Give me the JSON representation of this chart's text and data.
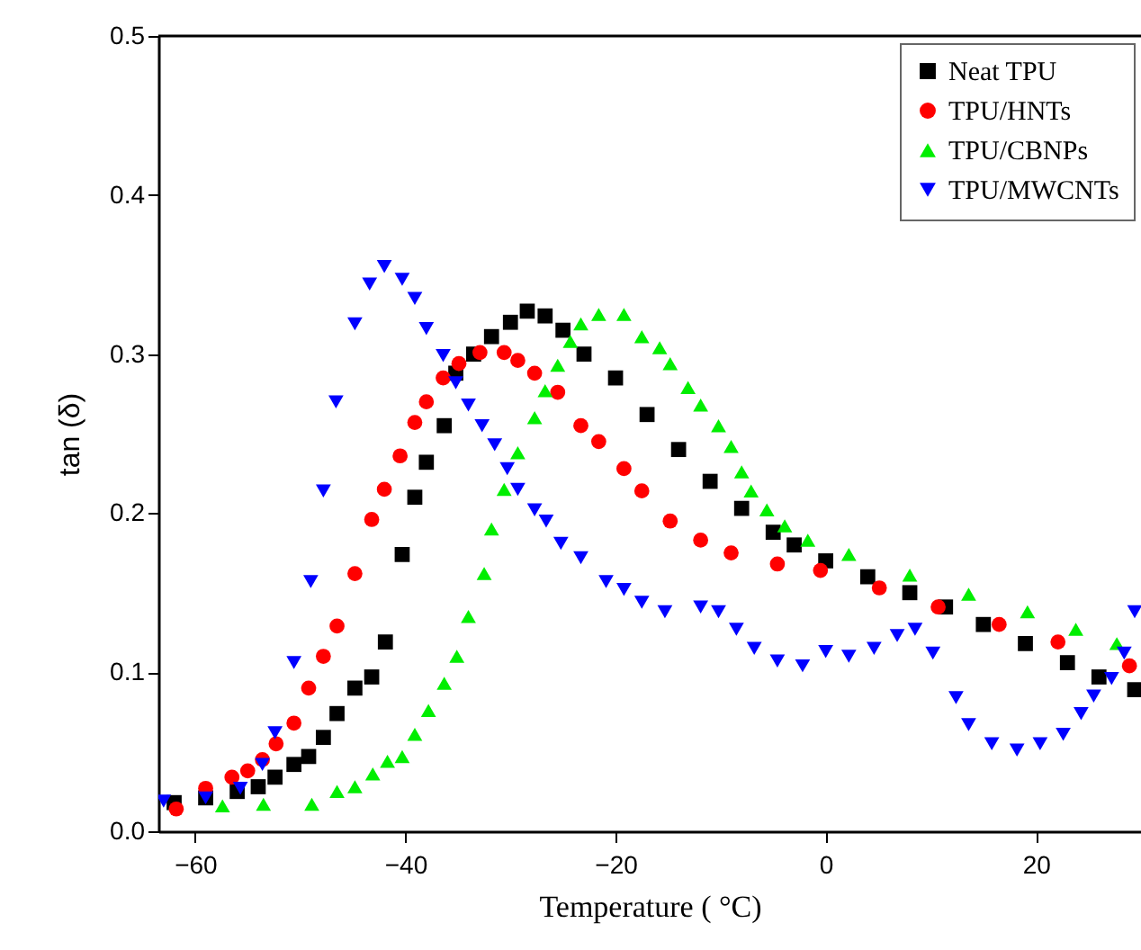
{
  "chart_data": {
    "type": "scatter",
    "xlabel": "Temperature ( °C)",
    "ylabel": "tan (δ)",
    "xlim": [
      -63.5,
      30
    ],
    "xticks": [
      -60,
      -40,
      -20,
      0,
      20
    ],
    "ylim": [
      0,
      0.5
    ],
    "yticks": [
      {
        "value": 0,
        "label": "0.0"
      },
      0.1,
      0.2,
      0.3,
      0.4,
      0.5
    ],
    "grid": false,
    "legend": "top right",
    "series": [
      {
        "name": "Neat TPU",
        "color": "#000000",
        "marker": "square",
        "x": [
          -62,
          -59,
          -56,
          -54,
          -52.4,
          -50.6,
          -49.2,
          -47.8,
          -46.5,
          -44.8,
          -43.2,
          -41.9,
          -40.3,
          -39.1,
          -38,
          -36.3,
          -35.2,
          -33.5,
          -31.8,
          -30,
          -28.4,
          -26.7,
          -25,
          -23,
          -20,
          -17,
          -14,
          -11,
          -8,
          -5,
          -3,
          0,
          4,
          8,
          11.4,
          15,
          19,
          23,
          26,
          29.4
        ],
        "values": [
          0.018,
          0.021,
          0.025,
          0.028,
          0.034,
          0.042,
          0.047,
          0.059,
          0.074,
          0.09,
          0.097,
          0.119,
          0.174,
          0.21,
          0.232,
          0.255,
          0.288,
          0.3,
          0.311,
          0.32,
          0.327,
          0.324,
          0.315,
          0.3,
          0.285,
          0.262,
          0.24,
          0.22,
          0.203,
          0.188,
          0.18,
          0.17,
          0.16,
          0.15,
          0.141,
          0.13,
          0.118,
          0.106,
          0.097,
          0.089
        ]
      },
      {
        "name": "TPU/HNTs",
        "color": "#ff0000",
        "marker": "circle",
        "x": [
          -61.8,
          -59,
          -56.5,
          -55,
          -53.6,
          -52.3,
          -50.6,
          -49.2,
          -47.8,
          -46.5,
          -44.8,
          -43.2,
          -42,
          -40.5,
          -39.1,
          -38,
          -36.4,
          -34.9,
          -32.9,
          -30.6,
          -29.3,
          -27.7,
          -25.5,
          -23.3,
          -21.6,
          -19.2,
          -17.5,
          -14.8,
          -11.9,
          -9,
          -4.6,
          -0.5,
          5.1,
          10.7,
          16.5,
          22.1,
          28.9
        ],
        "values": [
          0.014,
          0.027,
          0.034,
          0.038,
          0.045,
          0.055,
          0.068,
          0.09,
          0.11,
          0.129,
          0.162,
          0.196,
          0.215,
          0.236,
          0.257,
          0.27,
          0.285,
          0.294,
          0.301,
          0.301,
          0.296,
          0.288,
          0.276,
          0.255,
          0.245,
          0.228,
          0.214,
          0.195,
          0.183,
          0.175,
          0.168,
          0.164,
          0.153,
          0.141,
          0.13,
          0.119,
          0.104
        ]
      },
      {
        "name": "TPU/CBNPs",
        "color": "#00ee00",
        "marker": "triangle-up",
        "x": [
          -57.4,
          -53.5,
          -48.9,
          -46.5,
          -44.8,
          -43.1,
          -41.7,
          -40.3,
          -39.1,
          -37.8,
          -36.3,
          -35.1,
          -34,
          -32.5,
          -31.8,
          -30.6,
          -29.3,
          -27.7,
          -26.7,
          -25.5,
          -24.3,
          -23.3,
          -21.6,
          -19.2,
          -17.5,
          -15.8,
          -14.8,
          -13.1,
          -11.9,
          -10.2,
          -9,
          -8,
          -7.1,
          -5.6,
          -3.9,
          -1.7,
          2.2,
          8,
          13.6,
          19.2,
          23.8,
          27.7
        ],
        "values": [
          0.016,
          0.017,
          0.017,
          0.025,
          0.028,
          0.036,
          0.044,
          0.047,
          0.061,
          0.076,
          0.093,
          0.11,
          0.135,
          0.162,
          0.19,
          0.215,
          0.238,
          0.26,
          0.277,
          0.293,
          0.308,
          0.319,
          0.325,
          0.325,
          0.311,
          0.304,
          0.294,
          0.279,
          0.268,
          0.255,
          0.242,
          0.226,
          0.214,
          0.202,
          0.192,
          0.183,
          0.174,
          0.161,
          0.149,
          0.138,
          0.127,
          0.118
        ]
      },
      {
        "name": "TPU/MWCNTs",
        "color": "#0000ff",
        "marker": "triangle-down",
        "x": [
          -63,
          -59,
          -55.7,
          -53.6,
          -52.4,
          -50.6,
          -49,
          -47.8,
          -46.6,
          -44.8,
          -43.4,
          -42,
          -40.3,
          -39.1,
          -38,
          -36.4,
          -35.2,
          -34,
          -32.7,
          -31.5,
          -30.3,
          -29.3,
          -27.7,
          -26.6,
          -25.2,
          -23.3,
          -20.9,
          -19.2,
          -17.5,
          -15.3,
          -11.9,
          -10.2,
          -8.5,
          -6.8,
          -4.6,
          -2.2,
          0,
          2.2,
          4.6,
          6.8,
          8.5,
          10.2,
          12.4,
          13.6,
          15.8,
          18.2,
          20.4,
          22.6,
          24.3,
          25.5,
          27.2,
          28.4,
          29.4
        ],
        "values": [
          0.019,
          0.021,
          0.027,
          0.042,
          0.062,
          0.106,
          0.157,
          0.214,
          0.27,
          0.319,
          0.344,
          0.355,
          0.347,
          0.335,
          0.316,
          0.299,
          0.282,
          0.268,
          0.255,
          0.243,
          0.228,
          0.215,
          0.202,
          0.195,
          0.181,
          0.172,
          0.157,
          0.152,
          0.144,
          0.138,
          0.141,
          0.138,
          0.127,
          0.115,
          0.107,
          0.104,
          0.113,
          0.11,
          0.115,
          0.123,
          0.127,
          0.112,
          0.084,
          0.067,
          0.055,
          0.051,
          0.055,
          0.061,
          0.074,
          0.085,
          0.096,
          0.112,
          0.138
        ]
      }
    ]
  }
}
